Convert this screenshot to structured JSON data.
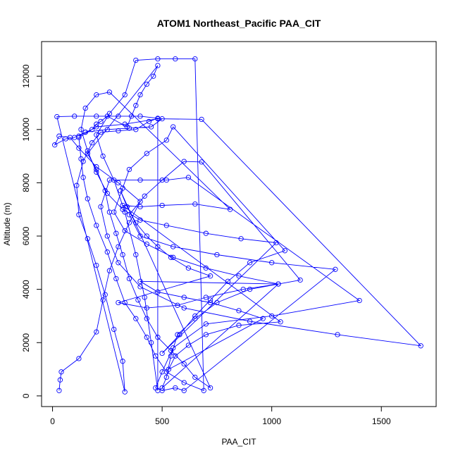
{
  "chart_data": {
    "type": "scatter",
    "title": "ATOM1 Northeast_Pacific PAA_CIT",
    "xlabel": "PAA_CIT",
    "ylabel": "Altitude (m)",
    "xlim": [
      -50,
      1750
    ],
    "ylim": [
      -400,
      13300
    ],
    "x_ticks": [
      0,
      500,
      1000,
      1500
    ],
    "y_ticks": [
      0,
      2000,
      4000,
      6000,
      8000,
      10000,
      12000
    ],
    "grid": false,
    "legend": "none",
    "series": [
      {
        "color": "#0000ff",
        "style": "points-and-lines",
        "points": [
          [
            30,
            200
          ],
          [
            35,
            600
          ],
          [
            40,
            900
          ],
          [
            120,
            1400
          ],
          [
            200,
            2400
          ],
          [
            230,
            3600
          ],
          [
            260,
            4700
          ],
          [
            300,
            5600
          ],
          [
            350,
            6500
          ],
          [
            400,
            7300
          ],
          [
            300,
            8000
          ],
          [
            200,
            8600
          ],
          [
            120,
            9300
          ],
          [
            80,
            9700
          ],
          [
            30,
            9750
          ],
          [
            10,
            9420
          ],
          [
            60,
            9650
          ],
          [
            100,
            9700
          ],
          [
            150,
            9900
          ],
          [
            250,
            10000
          ],
          [
            350,
            10050
          ],
          [
            450,
            10100
          ],
          [
            500,
            10400
          ],
          [
            400,
            10500
          ],
          [
            300,
            10500
          ],
          [
            200,
            10500
          ],
          [
            100,
            10500
          ],
          [
            20,
            10480
          ],
          [
            330,
            150
          ],
          [
            320,
            1300
          ],
          [
            280,
            2500
          ],
          [
            240,
            3800
          ],
          [
            200,
            4900
          ],
          [
            160,
            5900
          ],
          [
            120,
            6800
          ],
          [
            110,
            7900
          ],
          [
            140,
            8800
          ],
          [
            180,
            9500
          ],
          [
            220,
            9900
          ],
          [
            300,
            9950
          ],
          [
            380,
            10000
          ],
          [
            440,
            10300
          ],
          [
            480,
            10420
          ],
          [
            480,
            200
          ],
          [
            450,
            2000
          ],
          [
            420,
            3700
          ],
          [
            380,
            5300
          ],
          [
            330,
            6900
          ],
          [
            280,
            8100
          ],
          [
            230,
            9000
          ],
          [
            200,
            9800
          ],
          [
            260,
            10600
          ],
          [
            330,
            11300
          ],
          [
            380,
            12600
          ],
          [
            480,
            12650
          ],
          [
            560,
            12650
          ],
          [
            650,
            12650
          ],
          [
            690,
            200
          ],
          [
            600,
            500
          ],
          [
            520,
            900
          ],
          [
            470,
            1500
          ],
          [
            430,
            2200
          ],
          [
            380,
            2900
          ],
          [
            330,
            3500
          ],
          [
            290,
            4400
          ],
          [
            250,
            5400
          ],
          [
            200,
            6400
          ],
          [
            160,
            7400
          ],
          [
            140,
            8200
          ],
          [
            130,
            8900
          ],
          [
            120,
            9700
          ],
          [
            200,
            10100
          ],
          [
            330,
            10200
          ],
          [
            480,
            10400
          ],
          [
            680,
            10380
          ],
          [
            1680,
            1880
          ],
          [
            1300,
            2300
          ],
          [
            900,
            2800
          ],
          [
            600,
            3300
          ],
          [
            400,
            4100
          ],
          [
            300,
            5000
          ],
          [
            250,
            6000
          ],
          [
            220,
            7100
          ],
          [
            260,
            8100
          ],
          [
            400,
            8100
          ],
          [
            520,
            8100
          ],
          [
            620,
            8200
          ],
          [
            1400,
            3580
          ],
          [
            1000,
            3000
          ],
          [
            700,
            2700
          ],
          [
            550,
            1800
          ],
          [
            500,
            900
          ],
          [
            470,
            300
          ],
          [
            500,
            200
          ],
          [
            560,
            300
          ],
          [
            600,
            200
          ],
          [
            1290,
            4750
          ],
          [
            1000,
            5000
          ],
          [
            750,
            5300
          ],
          [
            550,
            5600
          ],
          [
            400,
            6000
          ],
          [
            350,
            6800
          ],
          [
            420,
            7500
          ],
          [
            500,
            8100
          ],
          [
            600,
            8800
          ],
          [
            680,
            8780
          ],
          [
            1130,
            4350
          ],
          [
            900,
            4000
          ],
          [
            750,
            3500
          ],
          [
            650,
            2900
          ],
          [
            570,
            2300
          ],
          [
            540,
            1500
          ],
          [
            520,
            700
          ],
          [
            500,
            300
          ],
          [
            1030,
            4200
          ],
          [
            850,
            4500
          ],
          [
            700,
            4800
          ],
          [
            550,
            5200
          ],
          [
            430,
            5700
          ],
          [
            330,
            6200
          ],
          [
            280,
            6900
          ],
          [
            320,
            7800
          ],
          [
            350,
            8500
          ],
          [
            430,
            9100
          ],
          [
            520,
            9600
          ],
          [
            550,
            10100
          ],
          [
            1060,
            5450
          ],
          [
            900,
            5000
          ],
          [
            800,
            4300
          ],
          [
            720,
            3600
          ],
          [
            650,
            3000
          ],
          [
            580,
            2300
          ],
          [
            500,
            1600
          ],
          [
            1020,
            5750
          ],
          [
            860,
            5900
          ],
          [
            700,
            6100
          ],
          [
            520,
            6400
          ],
          [
            400,
            6600
          ],
          [
            320,
            7000
          ],
          [
            250,
            7600
          ],
          [
            200,
            8400
          ],
          [
            160,
            9200
          ],
          [
            130,
            10000
          ],
          [
            150,
            10800
          ],
          [
            200,
            11300
          ],
          [
            260,
            11400
          ],
          [
            810,
            7000
          ],
          [
            650,
            7200
          ],
          [
            500,
            7150
          ],
          [
            400,
            7100
          ],
          [
            320,
            7150
          ],
          [
            1040,
            2780
          ],
          [
            850,
            2650
          ],
          [
            700,
            2300
          ],
          [
            620,
            1900
          ],
          [
            560,
            1500
          ],
          [
            530,
            1000
          ],
          [
            960,
            2900
          ],
          [
            850,
            3200
          ],
          [
            720,
            3500
          ],
          [
            600,
            3700
          ],
          [
            480,
            3900
          ],
          [
            400,
            4300
          ],
          [
            1030,
            4200
          ],
          [
            870,
            4000
          ],
          [
            700,
            3700
          ],
          [
            570,
            3400
          ],
          [
            430,
            3300
          ],
          [
            300,
            3500
          ],
          [
            720,
            4500
          ],
          [
            620,
            4800
          ],
          [
            540,
            5200
          ],
          [
            480,
            5600
          ],
          [
            430,
            6000
          ],
          [
            380,
            6500
          ],
          [
            340,
            7100
          ],
          [
            310,
            7700
          ],
          [
            720,
            300
          ],
          [
            650,
            700
          ],
          [
            600,
            1200
          ],
          [
            540,
            1700
          ],
          [
            480,
            2200
          ],
          [
            430,
            2900
          ],
          [
            390,
            3600
          ],
          [
            350,
            4400
          ],
          [
            320,
            5300
          ],
          [
            290,
            6100
          ],
          [
            260,
            6900
          ],
          [
            240,
            7700
          ],
          [
            200,
            8500
          ],
          [
            160,
            9100
          ],
          [
            480,
            12400
          ],
          [
            460,
            12000
          ],
          [
            430,
            11700
          ],
          [
            400,
            11300
          ],
          [
            380,
            10900
          ],
          [
            360,
            10500
          ],
          [
            340,
            10100
          ],
          [
            250,
            10500
          ],
          [
            220,
            10300
          ],
          [
            200,
            10200
          ],
          [
            180,
            10000
          ],
          [
            150,
            9900
          ],
          [
            120,
            9750
          ]
        ]
      }
    ]
  }
}
